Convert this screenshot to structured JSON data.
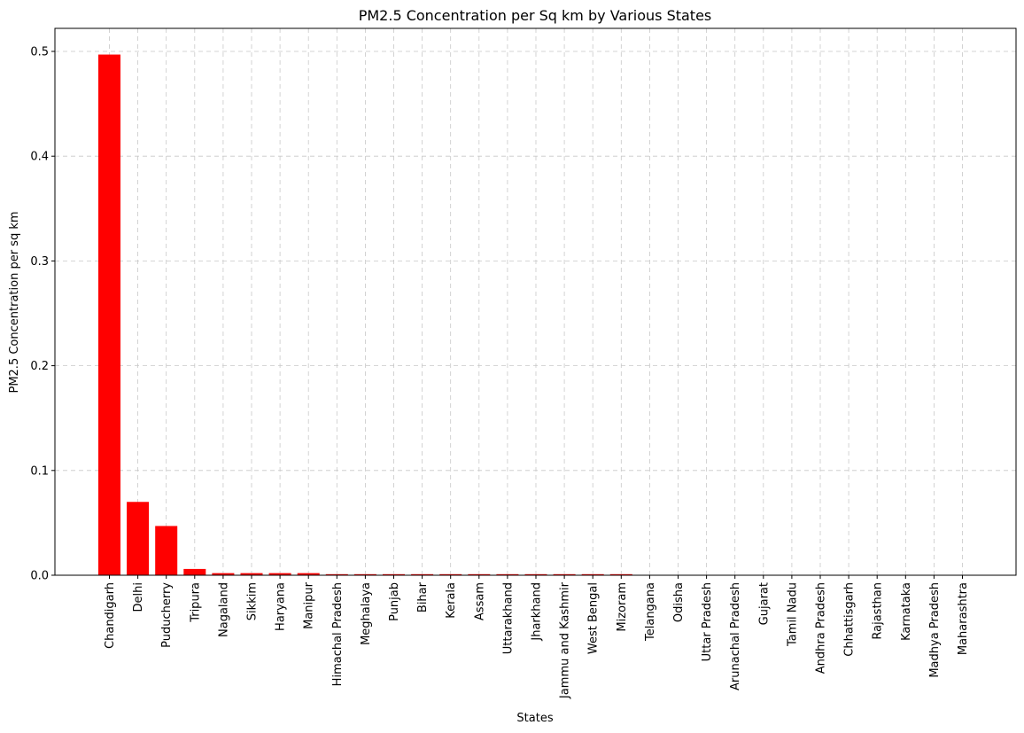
{
  "chart_data": {
    "type": "bar",
    "title": "PM2.5 Concentration per Sq km by Various States",
    "xlabel": "States",
    "ylabel": "PM2.5 Concentration per sq km",
    "ylim": [
      0,
      0.522
    ],
    "yticks": [
      "0.0",
      "0.1",
      "0.2",
      "0.3",
      "0.4",
      "0.5"
    ],
    "grid": true,
    "bar_color": "#ff0000",
    "categories": [
      "Chandigarh",
      "Delhi",
      "Puducherry",
      "Tripura",
      "Nagaland",
      "Sikkim",
      "Haryana",
      "Manipur",
      "Himachal Pradesh",
      "Meghalaya",
      "Punjab",
      "Bihar",
      "Kerala",
      "Assam",
      "Uttarakhand",
      "Jharkhand",
      "Jammu and Kashmir",
      "West Bengal",
      "Mizoram",
      "Telangana",
      "Odisha",
      "Uttar Pradesh",
      "Arunachal Pradesh",
      "Gujarat",
      "Tamil Nadu",
      "Andhra Pradesh",
      "Chhattisgarh",
      "Rajasthan",
      "Karnataka",
      "Madhya Pradesh",
      "Maharashtra"
    ],
    "values": [
      0.497,
      0.07,
      0.047,
      0.006,
      0.002,
      0.002,
      0.002,
      0.002,
      0.001,
      0.001,
      0.001,
      0.001,
      0.001,
      0.001,
      0.001,
      0.001,
      0.001,
      0.001,
      0.001,
      0.0004,
      0.0003,
      0.0003,
      0.0002,
      0.0002,
      0.0002,
      0.0002,
      0.0002,
      0.0001,
      0.0001,
      0.0001,
      0.0001
    ]
  }
}
